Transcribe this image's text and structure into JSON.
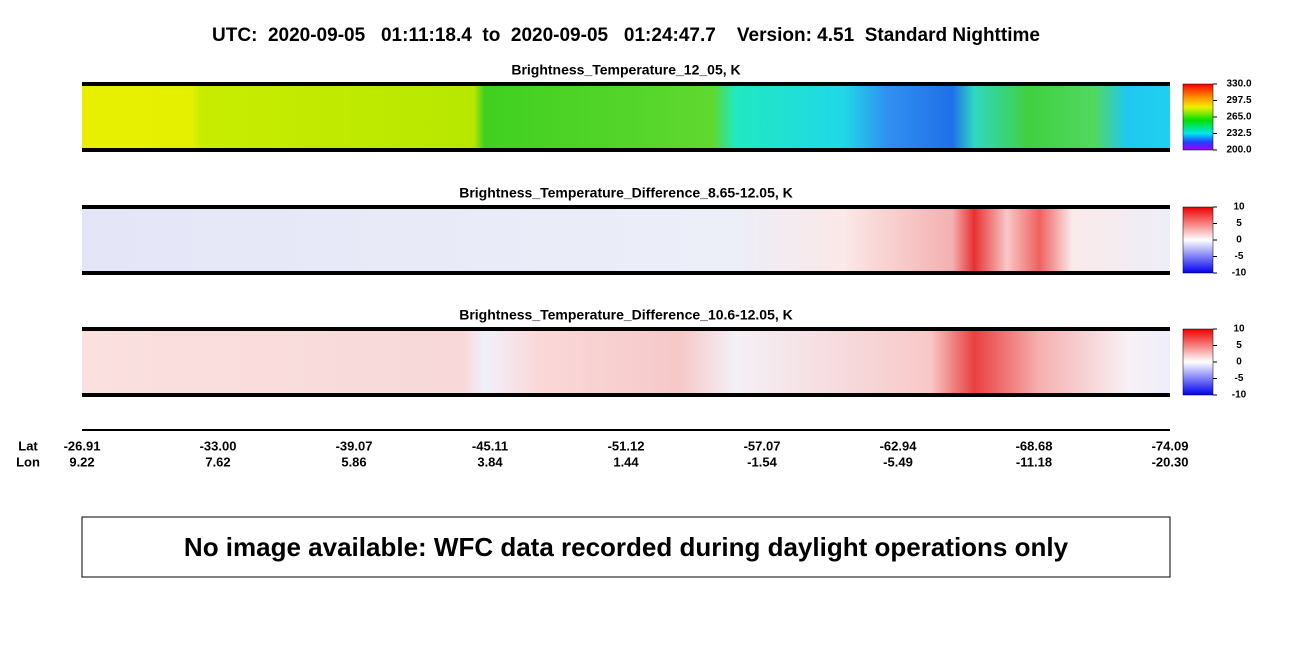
{
  "header": {
    "title": "UTC:  2020-09-05   01:11:18.4  to  2020-09-05   01:24:47.7    Version: 4.51  Standard Nighttime"
  },
  "panels": [
    {
      "title": "Brightness_Temperature_12_05, K",
      "colorbar": {
        "lim": [
          200,
          330
        ],
        "ticks": [
          {
            "value": 330,
            "label": "330.0"
          },
          {
            "value": 297.5,
            "label": "297.5"
          },
          {
            "value": 265,
            "label": "265.0"
          },
          {
            "value": 232.5,
            "label": "232.5"
          },
          {
            "value": 200,
            "label": "200.0"
          }
        ]
      }
    },
    {
      "title": "Brightness_Temperature_Difference_8.65-12.05, K",
      "colorbar": {
        "lim": [
          -10,
          10
        ],
        "ticks": [
          10,
          5,
          0,
          -5,
          -10
        ]
      }
    },
    {
      "title": "Brightness_Temperature_Difference_10.6-12.05, K",
      "colorbar": {
        "lim": [
          -10,
          10
        ],
        "ticks": [
          10,
          5,
          0,
          -5,
          -10
        ]
      }
    }
  ],
  "track": {
    "lat_label": "Lat",
    "lon_label": "Lon",
    "lat": [
      -26.91,
      {
        "value": -33,
        "label": "-33.00"
      },
      -39.07,
      -45.11,
      -51.12,
      -57.07,
      -62.94,
      -68.68,
      -74.09
    ],
    "lon": [
      9.22,
      7.62,
      5.86,
      3.84,
      1.44,
      -1.54,
      -5.49,
      -11.18,
      {
        "value": -20.3,
        "label": "-20.30"
      }
    ]
  },
  "message": "No image available: WFC data recorded during daylight operations only"
}
